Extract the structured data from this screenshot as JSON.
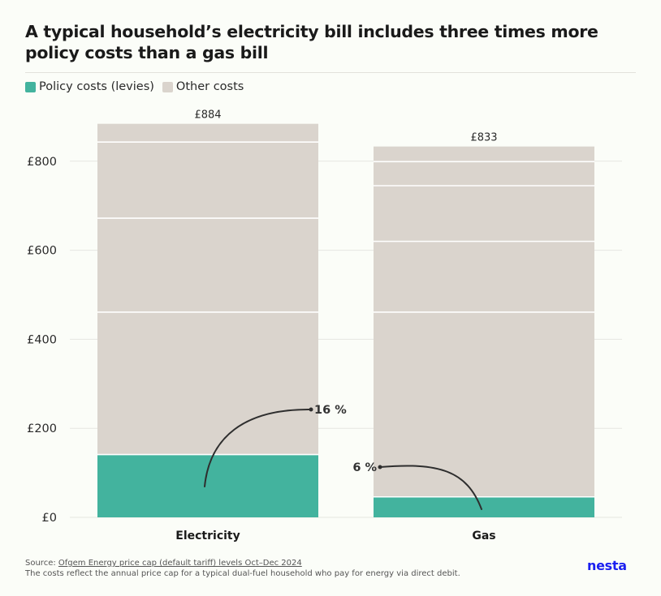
{
  "title": "A typical household’s electricity bill includes three times more policy costs than a gas bill",
  "legend": {
    "policy_label": "Policy costs (levies)",
    "other_label": "Other costs"
  },
  "colors": {
    "policy": "#43b39e",
    "other": "#dad4cd",
    "grid": "#e6e6e1",
    "annotation": "#2e2e2e",
    "logo": "#1b1ff0"
  },
  "chart_data": {
    "type": "bar",
    "stacked": true,
    "title": "A typical household’s electricity bill includes three times more policy costs than a gas bill",
    "categories": [
      "Electricity",
      "Gas"
    ],
    "series": [
      {
        "name": "Policy costs (levies)",
        "values": [
          141,
          46
        ]
      },
      {
        "name": "Other costs",
        "values": [
          743,
          787
        ]
      }
    ],
    "segment_boundaries": [
      [
        141,
        461,
        672,
        843,
        884
      ],
      [
        46,
        461,
        620,
        745,
        799,
        833
      ]
    ],
    "totals": [
      884,
      833
    ],
    "total_labels": [
      "£884",
      "£833"
    ],
    "annotations": [
      {
        "category": "Electricity",
        "text": "16 %"
      },
      {
        "category": "Gas",
        "text": "6 %"
      }
    ],
    "y_ticks": [
      0,
      200,
      400,
      600,
      800
    ],
    "y_tick_labels": [
      "£0",
      "£200",
      "£400",
      "£600",
      "£800"
    ],
    "ylim": [
      0,
      884
    ],
    "xlabel": "",
    "ylabel": "",
    "grid": true
  },
  "footer": {
    "source_prefix": "Source: ",
    "source_link": "Ofgem Energy price cap (default tariff) levels Oct–Dec 2024",
    "note": "The costs reflect the annual price cap for a typical dual-fuel household who pay for energy via direct debit."
  },
  "logo_text": "nesta"
}
